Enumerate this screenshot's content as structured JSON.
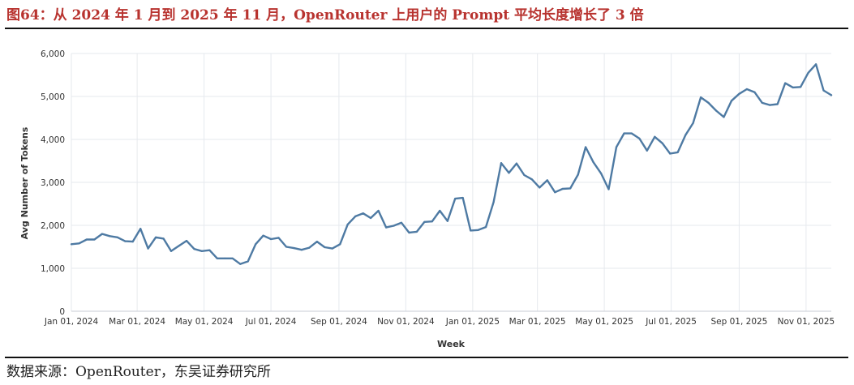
{
  "figure": {
    "title": "图64：从 2024 年 1 月到 2025 年 11 月，OpenRouter 上用户的 Prompt 平均长度增长了 3 倍",
    "source": "数据来源：OpenRouter，东吴证券研究所"
  },
  "colors": {
    "title": "#b8332f",
    "line": "#4e7aa3",
    "grid": "#e6e9ee",
    "axis_text": "#333333"
  },
  "chart_data": {
    "type": "line",
    "title": "",
    "xlabel": "Week",
    "ylabel": "Avg Number of Tokens",
    "ylim": [
      0,
      6000
    ],
    "yticks": [
      0,
      1000,
      2000,
      3000,
      4000,
      5000,
      6000
    ],
    "ytick_labels": [
      "0",
      "1,000",
      "2,000",
      "3,000",
      "4,000",
      "5,000",
      "6,000"
    ],
    "xlim": [
      "2024-01-01",
      "2025-11-24"
    ],
    "xticks": [
      "2024-01-01",
      "2024-03-01",
      "2024-05-01",
      "2024-07-01",
      "2024-09-01",
      "2024-11-01",
      "2025-01-01",
      "2025-03-01",
      "2025-05-01",
      "2025-07-01",
      "2025-09-01",
      "2025-11-01"
    ],
    "xtick_labels": [
      "Jan 01, 2024",
      "Mar 01, 2024",
      "May 01, 2024",
      "Jul 01, 2024",
      "Sep 01, 2024",
      "Nov 01, 2024",
      "Jan 01, 2025",
      "Mar 01, 2025",
      "May 01, 2025",
      "Jul 01, 2025",
      "Sep 01, 2025",
      "Nov 01, 2025"
    ],
    "grid": true,
    "series": [
      {
        "name": "Avg Number of Tokens",
        "start": "2024-01-01",
        "interval_days": 7,
        "values": [
          1560,
          1580,
          1670,
          1670,
          1800,
          1750,
          1720,
          1630,
          1620,
          1920,
          1460,
          1720,
          1690,
          1400,
          1520,
          1640,
          1450,
          1400,
          1420,
          1230,
          1230,
          1230,
          1100,
          1160,
          1560,
          1760,
          1680,
          1710,
          1500,
          1470,
          1430,
          1480,
          1620,
          1490,
          1460,
          1560,
          2020,
          2210,
          2280,
          2170,
          2340,
          1950,
          1990,
          2060,
          1830,
          1850,
          2080,
          2090,
          2340,
          2100,
          2620,
          2640,
          1880,
          1890,
          1960,
          2540,
          3450,
          3220,
          3440,
          3170,
          3070,
          2880,
          3050,
          2770,
          2850,
          2860,
          3180,
          3820,
          3470,
          3210,
          2840,
          3820,
          4140,
          4140,
          4020,
          3740,
          4060,
          3910,
          3670,
          3700,
          4100,
          4380,
          4980,
          4850,
          4670,
          4520,
          4900,
          5060,
          5170,
          5100,
          4850,
          4800,
          4820,
          5310,
          5210,
          5220,
          5550,
          5750,
          5140,
          5030
        ]
      }
    ]
  }
}
